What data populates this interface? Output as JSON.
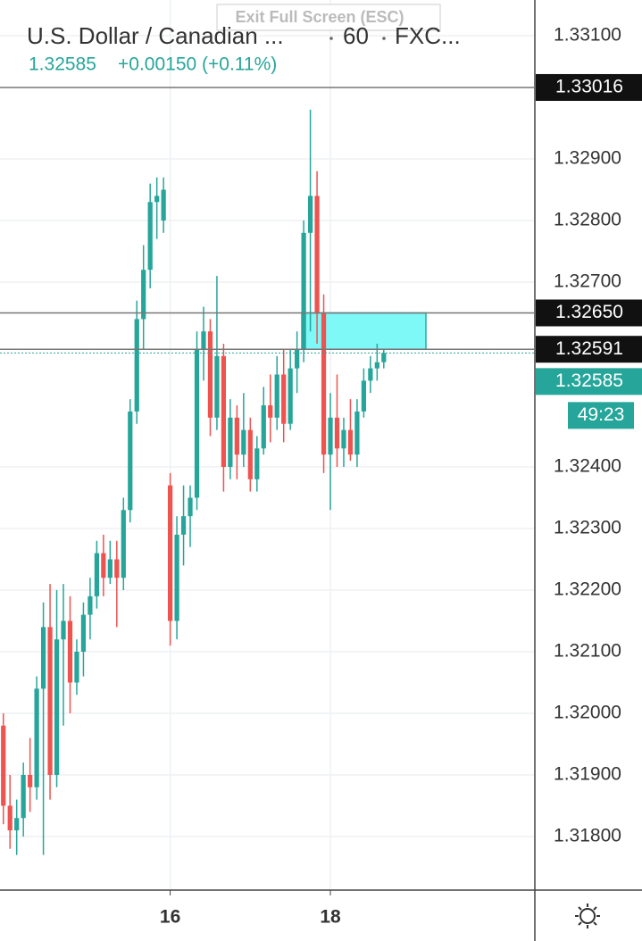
{
  "chart_data": {
    "type": "candlestick",
    "title": "U.S. Dollar / Canadian ...",
    "interval": "60",
    "exchange": "FXC...",
    "last_price": "1.32585",
    "change": "+0.00150 (+0.11%)",
    "exit_hint": "Exit Full Screen (ESC)",
    "countdown": "49:23",
    "up_color": "#26a69a",
    "down_color": "#ef5350",
    "grid": true,
    "categories": [
      null,
      null,
      null,
      null,
      null,
      null,
      null,
      null,
      null,
      null,
      null,
      null,
      null,
      null,
      null,
      null,
      null,
      null,
      null,
      null,
      null,
      null,
      null,
      null,
      null,
      "16",
      null,
      null,
      null,
      null,
      null,
      null,
      null,
      null,
      null,
      null,
      null,
      null,
      null,
      null,
      null,
      null,
      null,
      null,
      null,
      null,
      null,
      null,
      null,
      "18",
      null,
      null,
      null,
      null,
      null,
      null,
      null,
      null,
      null,
      null,
      null,
      null,
      null,
      null,
      null,
      null,
      null,
      null,
      null,
      null,
      null,
      null,
      null,
      null,
      null,
      null,
      null,
      null,
      null,
      null
    ],
    "open": [
      1.3198,
      1.3185,
      1.3181,
      1.3183,
      1.319,
      1.3188,
      1.3204,
      1.3214,
      1.319,
      1.3212,
      1.3215,
      1.3205,
      1.321,
      1.3216,
      1.3219,
      1.3226,
      1.3222,
      1.3225,
      1.3222,
      1.3233,
      1.3249,
      1.3264,
      1.3272,
      1.3283,
      1.328,
      1.3237,
      1.3215,
      1.3229,
      1.3232,
      1.3235,
      1.3259,
      1.3262,
      1.3248,
      1.3258,
      1.324,
      1.3248,
      1.3242,
      1.3246,
      1.3238,
      1.3243,
      1.325,
      1.3248,
      1.3255,
      1.3247,
      1.3256,
      1.3259,
      1.3278,
      1.3284,
      1.3265,
      1.3242,
      1.3248,
      1.3243,
      1.3246,
      1.3242,
      1.3249,
      1.3254,
      1.3256,
      1.3257,
      null,
      null,
      null,
      null,
      null,
      null,
      null,
      null,
      null,
      null,
      null,
      null,
      null,
      null,
      null,
      null,
      null,
      null,
      null,
      null,
      null,
      null
    ],
    "high": [
      1.32,
      1.319,
      1.3186,
      1.3192,
      1.3196,
      1.3206,
      1.3218,
      1.3221,
      1.322,
      1.3221,
      1.3219,
      1.3212,
      1.3218,
      1.3222,
      1.3228,
      1.3229,
      1.3228,
      1.3228,
      1.3235,
      1.3251,
      1.3267,
      1.3276,
      1.3286,
      1.3287,
      1.3287,
      1.3239,
      1.3232,
      1.3237,
      1.3237,
      1.3262,
      1.3266,
      1.3264,
      1.3271,
      1.326,
      1.3251,
      1.325,
      1.3252,
      1.3248,
      1.3245,
      1.3253,
      1.3255,
      1.3258,
      1.3259,
      1.3259,
      1.3262,
      1.328,
      1.3298,
      1.3288,
      1.3268,
      1.3252,
      1.3255,
      1.3248,
      1.3251,
      1.3251,
      1.3256,
      1.3258,
      1.326,
      1.32591,
      null,
      null,
      null,
      null,
      null,
      null,
      null,
      null,
      null,
      null,
      null,
      null,
      null,
      null,
      null,
      null,
      null,
      null,
      null,
      null,
      null,
      null
    ],
    "low": [
      1.3182,
      1.3178,
      1.3177,
      1.318,
      1.3184,
      1.3186,
      1.3177,
      1.3186,
      1.3188,
      1.3198,
      1.32,
      1.3203,
      1.3206,
      1.3212,
      1.3217,
      1.3219,
      1.3221,
      1.3214,
      1.322,
      1.3231,
      1.3247,
      1.3259,
      1.3269,
      1.3277,
      1.3278,
      1.3211,
      1.3212,
      1.3224,
      1.3227,
      1.3233,
      1.3254,
      1.3245,
      1.3246,
      1.3236,
      1.3238,
      1.3238,
      1.324,
      1.3236,
      1.3236,
      1.3242,
      1.3244,
      1.3246,
      1.3244,
      1.3246,
      1.3252,
      1.3257,
      1.3262,
      1.326,
      1.3239,
      1.3233,
      1.324,
      1.324,
      1.3241,
      1.324,
      1.3248,
      1.3252,
      1.3254,
      1.3256,
      null,
      null,
      null,
      null,
      null,
      null,
      null,
      null,
      null,
      null,
      null,
      null,
      null,
      null,
      null,
      null,
      null,
      null,
      null,
      null,
      null,
      null
    ],
    "close": [
      1.3185,
      1.3181,
      1.3183,
      1.319,
      1.3188,
      1.3204,
      1.3214,
      1.319,
      1.3212,
      1.3215,
      1.3205,
      1.321,
      1.3216,
      1.3219,
      1.3226,
      1.3222,
      1.3225,
      1.3222,
      1.3233,
      1.3249,
      1.3264,
      1.3272,
      1.3283,
      1.3284,
      1.3285,
      1.3215,
      1.3229,
      1.3232,
      1.3235,
      1.3259,
      1.3262,
      1.3248,
      1.3258,
      1.324,
      1.3248,
      1.3242,
      1.3246,
      1.3238,
      1.3243,
      1.325,
      1.3248,
      1.3255,
      1.3247,
      1.3256,
      1.3259,
      1.3278,
      1.3284,
      1.3265,
      1.3242,
      1.3248,
      1.3243,
      1.3246,
      1.3242,
      1.3249,
      1.3254,
      1.3256,
      1.3257,
      1.32585,
      null,
      null,
      null,
      null,
      null,
      null,
      null,
      null,
      null,
      null,
      null,
      null,
      null,
      null,
      null,
      null,
      null,
      null,
      null,
      null,
      null,
      null
    ],
    "ylim": [
      1.31713,
      1.33158
    ],
    "yticks": [
      {
        "value": 1.331,
        "label": "1.33100"
      },
      {
        "value": 1.329,
        "label": "1.32900"
      },
      {
        "value": 1.328,
        "label": "1.32800"
      },
      {
        "value": 1.327,
        "label": "1.32700"
      },
      {
        "value": 1.324,
        "label": "1.32400"
      },
      {
        "value": 1.323,
        "label": "1.32300"
      },
      {
        "value": 1.322,
        "label": "1.32200"
      },
      {
        "value": 1.321,
        "label": "1.32100"
      },
      {
        "value": 1.32,
        "label": "1.32000"
      },
      {
        "value": 1.319,
        "label": "1.31900"
      },
      {
        "value": 1.318,
        "label": "1.31800"
      }
    ],
    "price_lines": [
      1.33016,
      {
        "value": 1.3265,
        "label": "1.32650"
      },
      1.32591
    ],
    "zone": [
      1.32591,
      1.3265
    ],
    "current_price": 1.32585
  }
}
